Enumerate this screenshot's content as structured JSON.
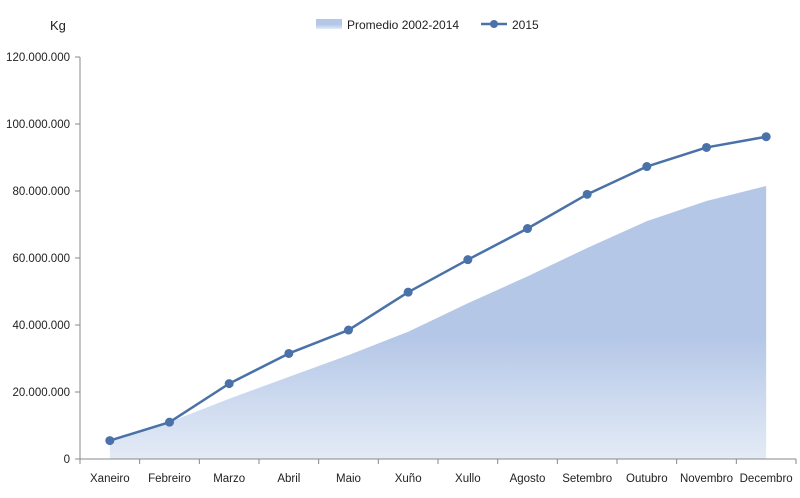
{
  "chart_data": {
    "type": "line",
    "unit_label": "Kg",
    "categories": [
      "Xaneiro",
      "Febreiro",
      "Marzo",
      "Abril",
      "Maio",
      "Xuño",
      "Xullo",
      "Agosto",
      "Setembro",
      "Outubro",
      "Novembro",
      "Decembro"
    ],
    "ylim": [
      0,
      120000000
    ],
    "yticks": [
      0,
      20000000,
      40000000,
      60000000,
      80000000,
      100000000,
      120000000
    ],
    "ytick_labels": [
      "0",
      "20.000.000",
      "40.000.000",
      "60.000.000",
      "80.000.000",
      "100.000.000",
      "120.000.000"
    ],
    "grid": false,
    "legend_position": "top-center",
    "series": [
      {
        "name": "Promedio 2002-2014",
        "type": "area",
        "color": "#b4c7e7",
        "values": [
          5500000,
          11000000,
          18000000,
          24500000,
          31000000,
          38000000,
          46500000,
          54500000,
          63000000,
          71000000,
          77000000,
          81500000
        ]
      },
      {
        "name": "2015",
        "type": "line",
        "color": "#4a72a8",
        "values": [
          5500000,
          11000000,
          22500000,
          31500000,
          38500000,
          49800000,
          59500000,
          68800000,
          79000000,
          87300000,
          93000000,
          96200000
        ]
      }
    ]
  }
}
